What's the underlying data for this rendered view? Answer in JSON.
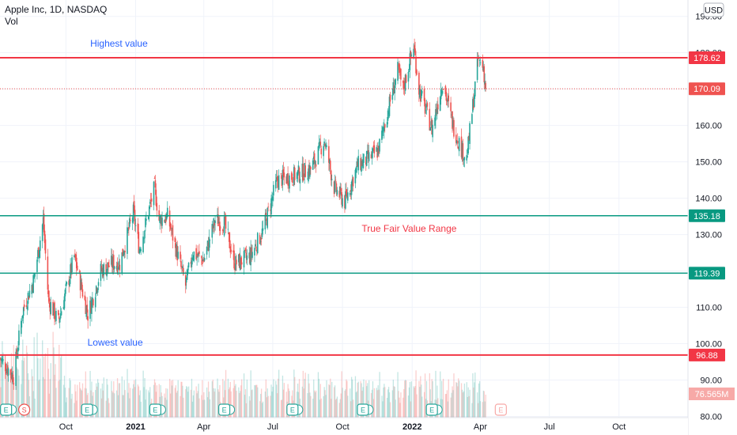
{
  "header": {
    "symbol_line": "Apple Inc, 1D, NASDAQ",
    "volume_label": "Vol",
    "currency": "USD"
  },
  "colors": {
    "up": "#26a69a",
    "down": "#ef5350",
    "red_line": "#f23645",
    "green_line": "#089981",
    "blue_text": "#2962ff",
    "red_text": "#f23645",
    "grid": "#f0f3fa"
  },
  "chart_data": {
    "type": "candlestick",
    "title": "Apple Inc, 1D, NASDAQ",
    "ylim": [
      80,
      192
    ],
    "y_ticks": [
      80,
      90,
      100,
      110,
      120,
      130,
      140,
      150,
      160,
      170,
      180,
      190
    ],
    "y_tick_labels": [
      "80.00",
      "90.00",
      "100.00",
      "110.00",
      "120.00",
      "130.00",
      "140.00",
      "150.00",
      "160.00",
      "170.00",
      "180.00",
      "190.00"
    ],
    "x_ticks": [
      "Oct",
      "2021",
      "Apr",
      "Jul",
      "Oct",
      "2022",
      "Apr",
      "Jul",
      "Oct"
    ],
    "x_range": [
      "2020-07-06",
      "2022-12-31"
    ],
    "x_tick_dates": [
      "2020-10-01",
      "2021-01-01",
      "2021-04-01",
      "2021-07-01",
      "2021-10-01",
      "2022-01-01",
      "2022-04-01",
      "2022-07-01",
      "2022-10-01"
    ],
    "price_anchors": [
      [
        "2020-07-06",
        96
      ],
      [
        "2020-07-24",
        91
      ],
      [
        "2020-08-05",
        109
      ],
      [
        "2020-08-20",
        118
      ],
      [
        "2020-09-01",
        134
      ],
      [
        "2020-09-08",
        112
      ],
      [
        "2020-09-21",
        106
      ],
      [
        "2020-10-12",
        124
      ],
      [
        "2020-10-30",
        108
      ],
      [
        "2020-11-16",
        120
      ],
      [
        "2020-12-01",
        122
      ],
      [
        "2020-12-11",
        122
      ],
      [
        "2020-12-29",
        136
      ],
      [
        "2021-01-06",
        126
      ],
      [
        "2021-01-26",
        143
      ],
      [
        "2021-02-01",
        134
      ],
      [
        "2021-02-12",
        135
      ],
      [
        "2021-03-08",
        116
      ],
      [
        "2021-03-17",
        125
      ],
      [
        "2021-04-01",
        123
      ],
      [
        "2021-04-16",
        134
      ],
      [
        "2021-04-28",
        133
      ],
      [
        "2021-05-12",
        122
      ],
      [
        "2021-06-01",
        124
      ],
      [
        "2021-06-18",
        131
      ],
      [
        "2021-07-07",
        145
      ],
      [
        "2021-07-27",
        146
      ],
      [
        "2021-08-20",
        148
      ],
      [
        "2021-09-07",
        156
      ],
      [
        "2021-09-20",
        143
      ],
      [
        "2021-10-04",
        139
      ],
      [
        "2021-10-21",
        149
      ],
      [
        "2021-11-05",
        151
      ],
      [
        "2021-11-17",
        153
      ],
      [
        "2021-12-01",
        165
      ],
      [
        "2021-12-13",
        175
      ],
      [
        "2021-12-20",
        170
      ],
      [
        "2022-01-03",
        182
      ],
      [
        "2022-01-10",
        170
      ],
      [
        "2022-01-27",
        159
      ],
      [
        "2022-02-10",
        172
      ],
      [
        "2022-02-24",
        160
      ],
      [
        "2022-03-08",
        153
      ],
      [
        "2022-03-14",
        151
      ],
      [
        "2022-03-29",
        178
      ],
      [
        "2022-04-05",
        176
      ],
      [
        "2022-04-08",
        170.09
      ]
    ],
    "last_price": 170.09,
    "volume_label": "76.565M",
    "hlines": [
      {
        "value": 178.62,
        "label": "178.62",
        "color": "#f23645",
        "width": 2
      },
      {
        "value": 135.18,
        "label": "135.18",
        "color": "#089981",
        "width": 1.5
      },
      {
        "value": 119.39,
        "label": "119.39",
        "color": "#089981",
        "width": 1.5
      },
      {
        "value": 96.88,
        "label": "96.88",
        "color": "#f23645",
        "width": 2
      }
    ],
    "annotations": [
      {
        "text": "Highest value",
        "date": "2020-12-10",
        "value": 181.7,
        "color": "#2962ff"
      },
      {
        "text": "True Fair Value Range",
        "date": "2021-12-28",
        "value": 130.8,
        "color": "#f23645"
      },
      {
        "text": "Lowest value",
        "date": "2020-12-05",
        "value": 99.5,
        "color": "#2962ff"
      }
    ],
    "events": [
      {
        "date": "2020-07-14",
        "kind": "E",
        "extra": true
      },
      {
        "date": "2020-08-07",
        "kind": "S"
      },
      {
        "date": "2020-10-29",
        "kind": "E",
        "extra": true
      },
      {
        "date": "2021-01-27",
        "kind": "E",
        "extra": true
      },
      {
        "date": "2021-04-28",
        "kind": "E",
        "extra": true
      },
      {
        "date": "2021-07-27",
        "kind": "E",
        "extra": true
      },
      {
        "date": "2021-10-28",
        "kind": "E",
        "extra": true
      },
      {
        "date": "2022-01-27",
        "kind": "E",
        "extra": true
      },
      {
        "date": "2022-04-28",
        "kind": "E",
        "future": true
      }
    ]
  }
}
